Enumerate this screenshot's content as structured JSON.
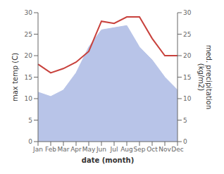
{
  "chart_data": {
    "type": "combo",
    "xlabel": "date (month)",
    "ylabel": "max temp (C)",
    "y2label": "med. precipitation\n(kg/m2)",
    "categories": [
      "Jan",
      "Feb",
      "Mar",
      "Apr",
      "May",
      "Jun",
      "Jul",
      "Aug",
      "Sep",
      "Oct",
      "Nov",
      "Dec"
    ],
    "series": [
      {
        "type": "area",
        "color": "#b8c4e8",
        "values": [
          11.5,
          10.5,
          12.0,
          16.0,
          22.0,
          26.0,
          26.5,
          27.0,
          22.0,
          19.0,
          15.0,
          12.0
        ]
      },
      {
        "type": "line",
        "color": "#c8413c",
        "axis": "y2",
        "values": [
          18.0,
          16.0,
          17.0,
          18.5,
          21.0,
          28.0,
          27.5,
          29.0,
          29.0,
          24.0,
          20.0,
          20.0
        ]
      }
    ],
    "ylim": [
      0,
      30
    ],
    "yticks": [
      0,
      5,
      10,
      15,
      20,
      25,
      30
    ],
    "y2lim": [
      0,
      30
    ],
    "y2ticks": [
      0,
      5,
      10,
      15,
      20,
      25,
      30
    ],
    "grid": false
  }
}
